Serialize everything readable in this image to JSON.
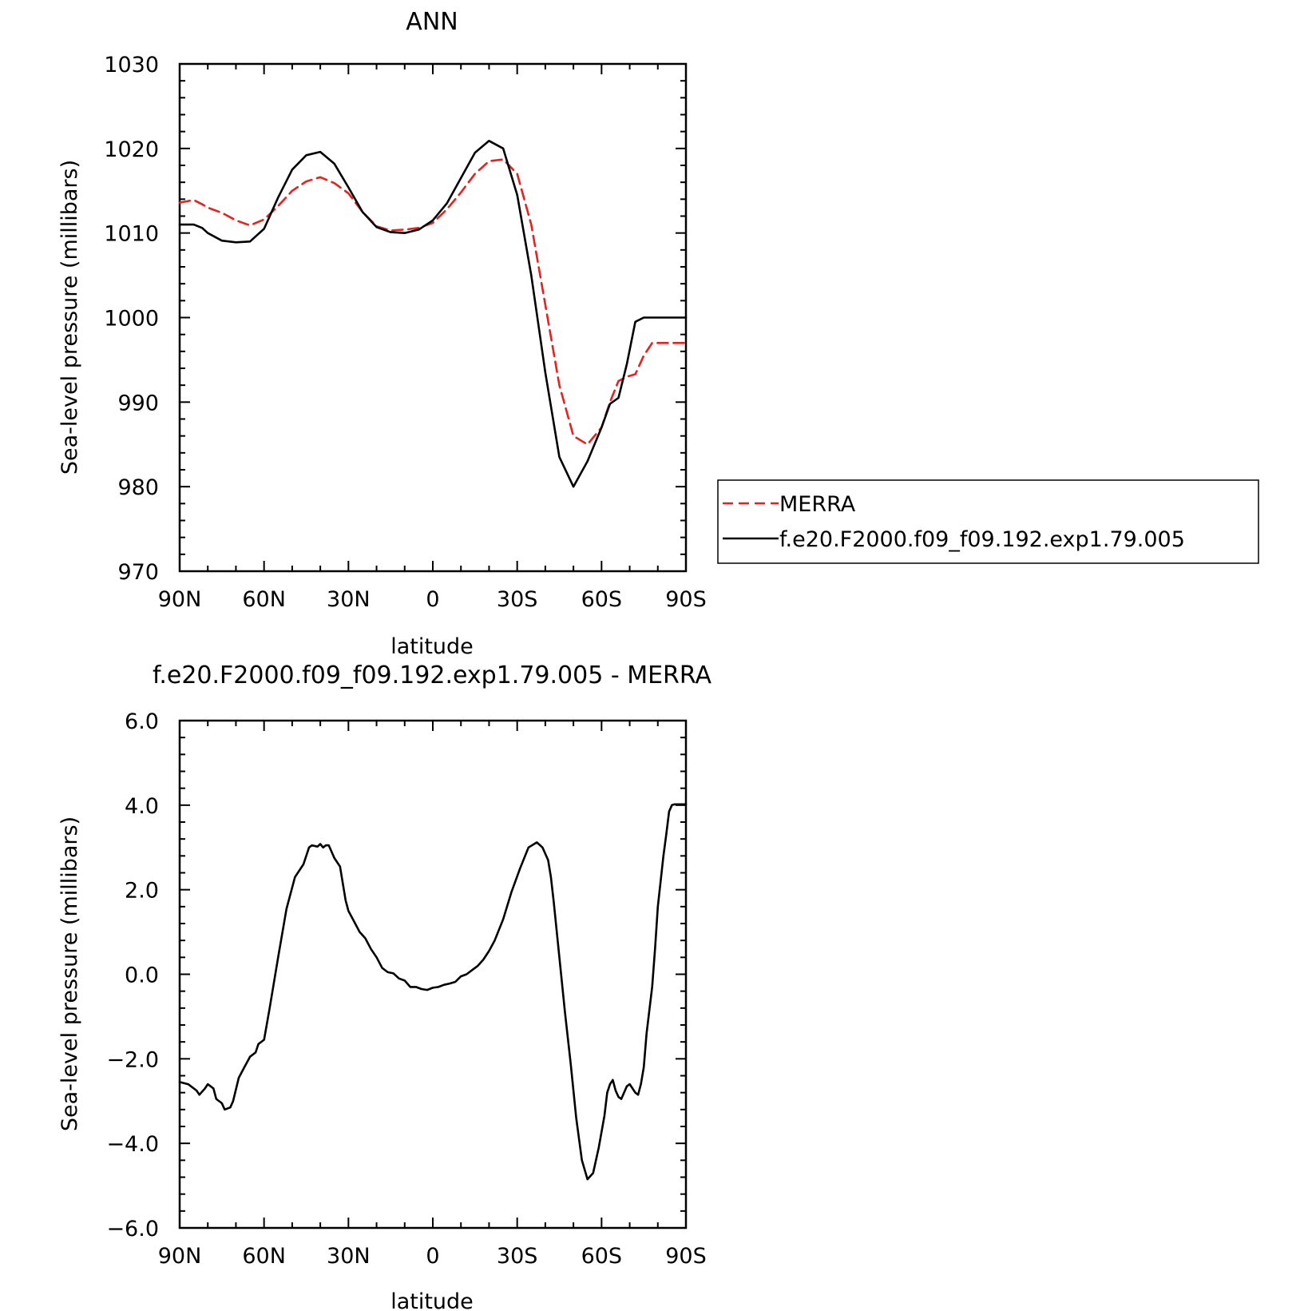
{
  "chart_data": [
    {
      "type": "line",
      "title": "ANN",
      "xlabel": "latitude",
      "ylabel": "Sea-level pressure (millibars)",
      "xlim": [
        90,
        -90
      ],
      "ylim": [
        970,
        1030
      ],
      "x_ticks": [
        90,
        60,
        30,
        0,
        -30,
        -60,
        -90
      ],
      "x_tick_labels": [
        "90N",
        "60N",
        "30N",
        "0",
        "30S",
        "60S",
        "90S"
      ],
      "y_ticks": [
        970,
        980,
        990,
        1000,
        1010,
        1020,
        1030
      ],
      "y_tick_labels": [
        "970",
        "980",
        "990",
        "1000",
        "1010",
        "1020",
        "1030"
      ],
      "legend": {
        "placement": "right",
        "entries": [
          "MERRA",
          "f.e20.F2000.f09_f09.192.exp1.79.005"
        ]
      },
      "series": [
        {
          "name": "MERRA",
          "color": "#e8211d",
          "dash": true,
          "x": [
            90,
            85,
            82,
            80,
            75,
            70,
            65,
            60,
            55,
            50,
            45,
            40,
            35,
            30,
            25,
            20,
            15,
            10,
            5,
            0,
            -5,
            -10,
            -15,
            -20,
            -25,
            -30,
            -35,
            -40,
            -45,
            -50,
            -55,
            -60,
            -63,
            -66,
            -69,
            -72,
            -75,
            -78,
            -81,
            -84,
            -87,
            -90
          ],
          "y": [
            1013.6,
            1013.9,
            1013.4,
            1013.0,
            1012.4,
            1011.5,
            1010.9,
            1011.6,
            1013.2,
            1015.0,
            1016.1,
            1016.6,
            1015.9,
            1014.7,
            1012.5,
            1010.8,
            1010.3,
            1010.4,
            1010.6,
            1011.2,
            1012.8,
            1014.8,
            1017.0,
            1018.5,
            1018.7,
            1017.0,
            1011.0,
            1001.5,
            992.0,
            986.0,
            985.0,
            987.0,
            990.0,
            992.5,
            993.0,
            993.3,
            995.5,
            997,
            997,
            997,
            997,
            997
          ]
        },
        {
          "name": "f.e20.F2000.f09_f09.192.exp1.79.005",
          "color": "#000000",
          "dash": false,
          "x": [
            90,
            85,
            82,
            80,
            75,
            70,
            65,
            60,
            55,
            50,
            45,
            40,
            35,
            30,
            25,
            20,
            15,
            10,
            5,
            0,
            -5,
            -10,
            -15,
            -20,
            -25,
            -30,
            -35,
            -40,
            -45,
            -50,
            -55,
            -60,
            -63,
            -66,
            -69,
            -72,
            -75,
            -78,
            -81,
            -84,
            -87,
            -90
          ],
          "y": [
            1011.0,
            1011.0,
            1010.6,
            1010.0,
            1009.1,
            1008.9,
            1009.0,
            1010.5,
            1014.2,
            1017.5,
            1019.2,
            1019.6,
            1018.2,
            1015.4,
            1012.5,
            1010.7,
            1010.1,
            1010.0,
            1010.4,
            1011.5,
            1013.5,
            1016.5,
            1019.5,
            1020.9,
            1020.0,
            1014.5,
            1005.0,
            993.5,
            983.5,
            980.0,
            983.0,
            987.0,
            989.8,
            990.5,
            994.5,
            999.5,
            1000,
            1000,
            1000,
            1000,
            1000,
            1000
          ]
        }
      ]
    },
    {
      "type": "line",
      "title": "f.e20.F2000.f09_f09.192.exp1.79.005 - MERRA",
      "xlabel": "latitude",
      "ylabel": "Sea-level pressure (millibars)",
      "xlim": [
        90,
        -90
      ],
      "ylim": [
        -6,
        6
      ],
      "x_ticks": [
        90,
        60,
        30,
        0,
        -30,
        -60,
        -90
      ],
      "x_tick_labels": [
        "90N",
        "60N",
        "30N",
        "0",
        "30S",
        "60S",
        "90S"
      ],
      "y_ticks": [
        -6,
        -4,
        -2,
        0,
        2,
        4,
        6
      ],
      "y_tick_labels": [
        "−6.0",
        "−4.0",
        "−2.0",
        "0.0",
        "2.0",
        "4.0",
        "6.0"
      ],
      "series": [
        {
          "color": "#000000",
          "dash": false,
          "x": [
            90,
            87,
            84,
            83,
            81,
            80,
            78,
            77,
            75,
            74,
            72,
            71,
            69,
            67,
            65,
            63,
            62,
            60,
            58,
            55,
            52,
            49,
            46,
            44,
            43,
            41,
            40,
            39,
            38,
            37,
            36,
            35,
            33,
            31,
            30,
            28,
            26,
            24,
            22,
            20,
            18,
            16,
            14,
            12,
            10,
            8,
            6,
            4,
            2,
            0,
            -2,
            -4,
            -6,
            -8,
            -10,
            -12,
            -14,
            -16,
            -18,
            -20,
            -22,
            -25,
            -28,
            -31,
            -34,
            -37,
            -39,
            -41,
            -42,
            -43,
            -45,
            -47,
            -49,
            -51,
            -53,
            -55,
            -57,
            -59,
            -61,
            -62,
            -63,
            -64,
            -65,
            -66,
            -67,
            -68,
            -69,
            -70,
            -71,
            -72,
            -73,
            -74,
            -75,
            -76,
            -78,
            -79,
            -80,
            -81,
            -82,
            -83,
            -84,
            -85,
            -86,
            -87,
            -88,
            -89,
            -90
          ],
          "y": [
            -2.55,
            -2.6,
            -2.75,
            -2.85,
            -2.7,
            -2.6,
            -2.7,
            -2.95,
            -3.05,
            -3.2,
            -3.15,
            -3.0,
            -2.45,
            -2.2,
            -1.95,
            -1.85,
            -1.65,
            -1.55,
            -0.8,
            0.4,
            1.55,
            2.3,
            2.6,
            3.0,
            3.05,
            3.02,
            3.08,
            3.0,
            3.05,
            3.05,
            2.9,
            2.75,
            2.55,
            1.75,
            1.5,
            1.25,
            1.0,
            0.85,
            0.6,
            0.4,
            0.15,
            0.05,
            0.02,
            -0.1,
            -0.15,
            -0.3,
            -0.3,
            -0.35,
            -0.37,
            -0.32,
            -0.3,
            -0.25,
            -0.22,
            -0.18,
            -0.05,
            0.0,
            0.1,
            0.2,
            0.35,
            0.55,
            0.8,
            1.3,
            1.95,
            2.5,
            3.0,
            3.12,
            3.0,
            2.7,
            2.3,
            1.7,
            0.4,
            -0.9,
            -2.1,
            -3.4,
            -4.4,
            -4.85,
            -4.7,
            -4.1,
            -3.35,
            -2.8,
            -2.6,
            -2.5,
            -2.75,
            -2.9,
            -2.95,
            -2.8,
            -2.65,
            -2.6,
            -2.7,
            -2.8,
            -2.85,
            -2.6,
            -2.2,
            -1.4,
            -0.3,
            0.6,
            1.6,
            2.2,
            2.8,
            3.3,
            3.85,
            4.0,
            4.02,
            4.02,
            4.02,
            4.02,
            4.02
          ]
        }
      ]
    }
  ]
}
